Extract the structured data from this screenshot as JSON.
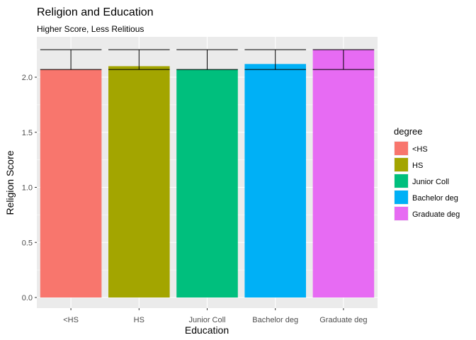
{
  "chart_data": {
    "type": "bar",
    "title": "Religion and Education",
    "subtitle": "Higher Score, Less Relitious",
    "xlabel": "Education",
    "ylabel": "Religion Score",
    "categories": [
      "<HS",
      "HS",
      "Junior Coll",
      "Bachelor deg",
      "Graduate deg"
    ],
    "values": [
      2.07,
      2.1,
      2.07,
      2.12,
      2.25
    ],
    "error_bars": {
      "lower": 2.07,
      "upper": 2.25
    },
    "colors": [
      "#F8766D",
      "#A3A500",
      "#00BF7D",
      "#00B0F6",
      "#E76BF3"
    ],
    "ylim": [
      -0.06,
      2.31
    ],
    "yticks": [
      0.0,
      0.5,
      1.0,
      1.5,
      2.0
    ],
    "ytick_labels": [
      "0.0",
      "0.5",
      "1.0",
      "1.5",
      "2.0"
    ],
    "grid": true,
    "panel_background": "#EBEBEB",
    "legend": {
      "title": "degree",
      "placement": "right",
      "labels": [
        "<HS",
        "HS",
        "Junior Coll",
        "Bachelor deg",
        "Graduate deg"
      ]
    }
  }
}
